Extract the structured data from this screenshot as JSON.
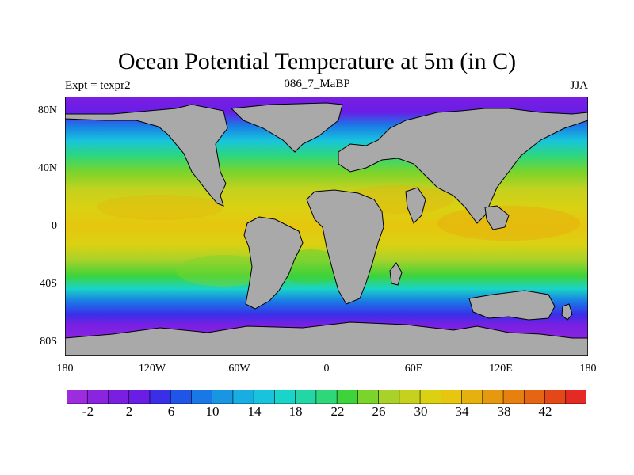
{
  "title": "Ocean Potential Temperature at 5m (in C)",
  "left_label": "Expt = texpr2",
  "center_label": "086_7_MaBP",
  "right_label": "JJA",
  "lat_labels": [
    "80N",
    "40N",
    "0",
    "40S",
    "80S"
  ],
  "lon_labels": [
    "180",
    "120W",
    "60W",
    "0",
    "60E",
    "120E",
    "180"
  ],
  "colorbar": {
    "labels": [
      "-2",
      "2",
      "6",
      "10",
      "14",
      "18",
      "22",
      "26",
      "30",
      "34",
      "38",
      "42"
    ],
    "colors": [
      "#9c2cdd",
      "#8a24df",
      "#7a1fe2",
      "#6a1de6",
      "#3a2ee9",
      "#1f55e8",
      "#1a78e6",
      "#1896e2",
      "#18aee2",
      "#18c4dd",
      "#19d4c8",
      "#22d7a5",
      "#2ed77a",
      "#3ed33a",
      "#7ad42c",
      "#a8d22a",
      "#c6d11e",
      "#dad112",
      "#e6c60e",
      "#e6b10e",
      "#e6980e",
      "#e6800e",
      "#e66514",
      "#e54818",
      "#e42a22"
    ]
  },
  "chart_data": {
    "type": "heatmap",
    "title": "Ocean Potential Temperature at 5m (in C)",
    "subtitle": "086_7_MaBP",
    "annotations": [
      "Expt = texpr2",
      "JJA"
    ],
    "x_ticks": [
      "180",
      "120W",
      "60W",
      "0",
      "60E",
      "120E",
      "180"
    ],
    "y_ticks": [
      "80N",
      "40N",
      "0",
      "40S",
      "80S"
    ],
    "xlim": [
      -180,
      180
    ],
    "ylim": [
      -90,
      90
    ],
    "colorbar_range": [
      -4,
      44
    ],
    "colorbar_interval": 2,
    "land_color": "#a9a9a9",
    "zonal_mean_temperature": [
      {
        "lat": 85,
        "value": 0
      },
      {
        "lat": 70,
        "value": 4
      },
      {
        "lat": 55,
        "value": 14
      },
      {
        "lat": 40,
        "value": 22
      },
      {
        "lat": 25,
        "value": 29
      },
      {
        "lat": 10,
        "value": 32
      },
      {
        "lat": 0,
        "value": 31
      },
      {
        "lat": -10,
        "value": 29
      },
      {
        "lat": -25,
        "value": 24
      },
      {
        "lat": -40,
        "value": 16
      },
      {
        "lat": -55,
        "value": 6
      },
      {
        "lat": -65,
        "value": 0
      },
      {
        "lat": -80,
        "value": -2
      }
    ]
  }
}
